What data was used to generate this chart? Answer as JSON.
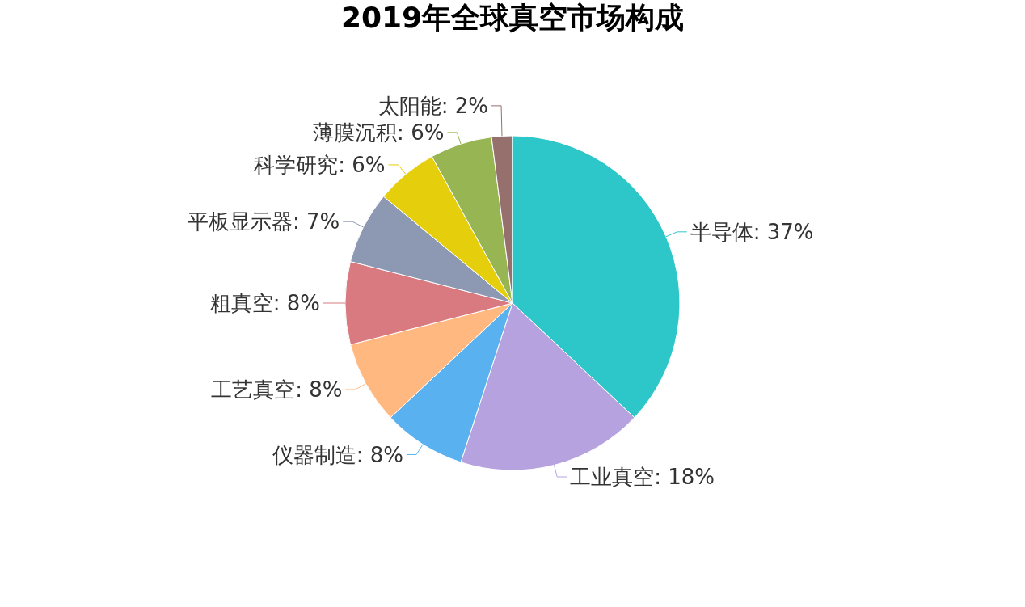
{
  "chart_data": {
    "type": "pie",
    "title": "2019年全球真空市场构成",
    "categories": [
      "半导体",
      "工业真空",
      "仪器制造",
      "工艺真空",
      "粗真空",
      "平板显示器",
      "科学研究",
      "薄膜沉积",
      "太阳能"
    ],
    "values": [
      37,
      18,
      8,
      8,
      8,
      7,
      6,
      6,
      2
    ],
    "value_labels": [
      "37%",
      "18%",
      "8%",
      "8%",
      "8%",
      "7%",
      "6%",
      "6%",
      "2%"
    ],
    "colors": [
      "#2ec7c9",
      "#b6a2de",
      "#5ab1ef",
      "#ffb980",
      "#d87a80",
      "#8d98b3",
      "#e5cf0d",
      "#97b552",
      "#95706d"
    ]
  }
}
